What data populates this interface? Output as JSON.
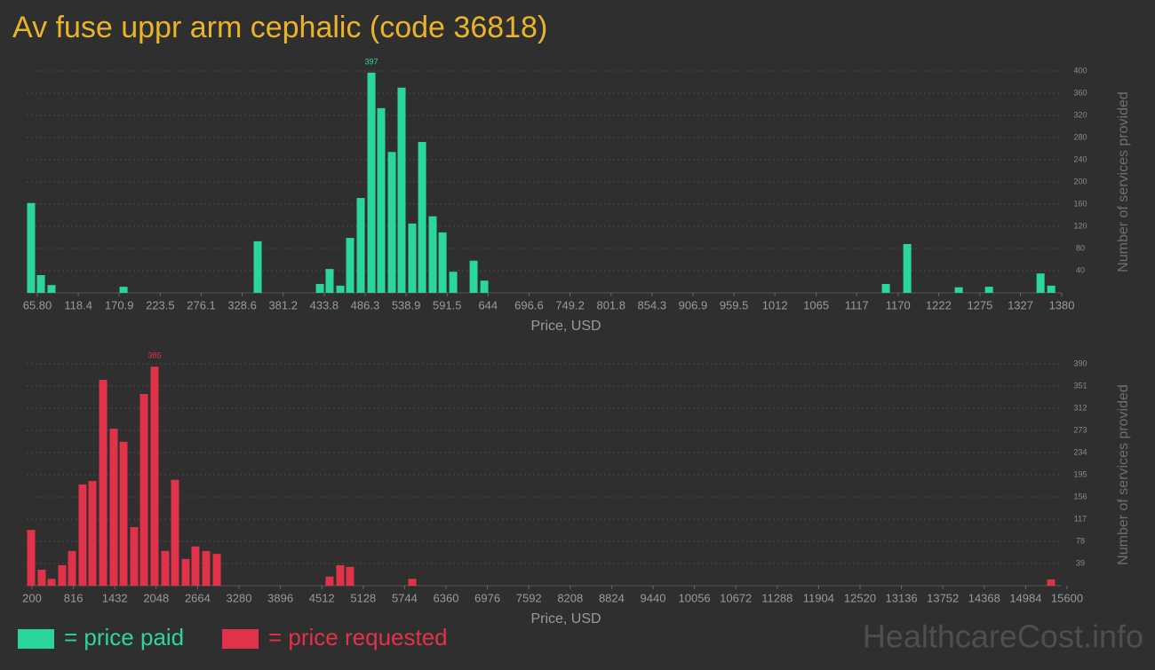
{
  "header": {
    "title": "Av fuse uppr arm cephalic (code 36818)"
  },
  "chart_data": [
    {
      "type": "bar",
      "x_label": "Price, USD",
      "y_label": "Number of services provided",
      "x": [
        57.8,
        70.4,
        84.0,
        176.4,
        348.5,
        428.3,
        440.8,
        454.5,
        467.0,
        480.7,
        494.4,
        506.9,
        520.6,
        533.1,
        546.8,
        559.4,
        573.0,
        585.6,
        599.3,
        625.5,
        639.2,
        1154.4,
        1181.8,
        1247.9,
        1286.7,
        1352.8,
        1366.5
      ],
      "series": [
        {
          "name": "= price paid",
          "color": "#2bd69e",
          "values": [
            162,
            32,
            14,
            11,
            93,
            16,
            43,
            13,
            99,
            171,
            397,
            333,
            254,
            370,
            125,
            272,
            138,
            109,
            38,
            58,
            22,
            16,
            88,
            10,
            11,
            35,
            13
          ]
        }
      ],
      "xlim": [
        52.1,
        1386.8
      ],
      "xticks": [
        {
          "value": 65.8,
          "label": "65.80"
        },
        118.4,
        170.9,
        223.5,
        276.1,
        328.6,
        381.2,
        433.8,
        486.3,
        538.9,
        591.5,
        644,
        696.6,
        749.2,
        801.8,
        854.3,
        906.9,
        959.5,
        1012,
        1065,
        1117,
        1170,
        1222,
        1275,
        1327,
        1380
      ],
      "ylim": [
        0,
        400
      ],
      "yticks": [
        40,
        80,
        120,
        160,
        200,
        240,
        280,
        320,
        360,
        400
      ],
      "grid": true
    },
    {
      "type": "bar",
      "x_label": "Price, USD",
      "y_label": "Number of services provided",
      "x": [
        187,
        345,
        491,
        649,
        795,
        953,
        1099,
        1258,
        1416,
        1562,
        1720,
        1866,
        2024,
        2183,
        2328,
        2487,
        2632,
        2791,
        2950,
        4628,
        4787,
        4932,
        5858,
        15362
      ],
      "series": [
        {
          "name": "= price requested",
          "color": "#e0334a",
          "values": [
            98,
            28,
            12,
            36,
            61,
            178,
            184,
            362,
            276,
            253,
            103,
            337,
            385,
            61,
            186,
            47,
            69,
            61,
            56,
            16,
            36,
            33,
            12,
            11
          ]
        }
      ],
      "xlim": [
        120.7,
        15600
      ],
      "xticks": [
        200,
        816,
        1432,
        2048,
        2664,
        3280,
        3896,
        4512,
        5128,
        5744,
        6360,
        6976,
        7592,
        8208,
        8824,
        9440,
        10056,
        10672,
        11288,
        11904,
        12520,
        13136,
        13752,
        14368,
        14984,
        15600
      ],
      "ylim": [
        0,
        390
      ],
      "yticks": [
        39,
        78,
        117,
        156,
        195,
        234,
        273,
        312,
        351,
        390
      ],
      "grid": true
    }
  ],
  "footer": {
    "watermark": "HealthcareCost.info"
  }
}
